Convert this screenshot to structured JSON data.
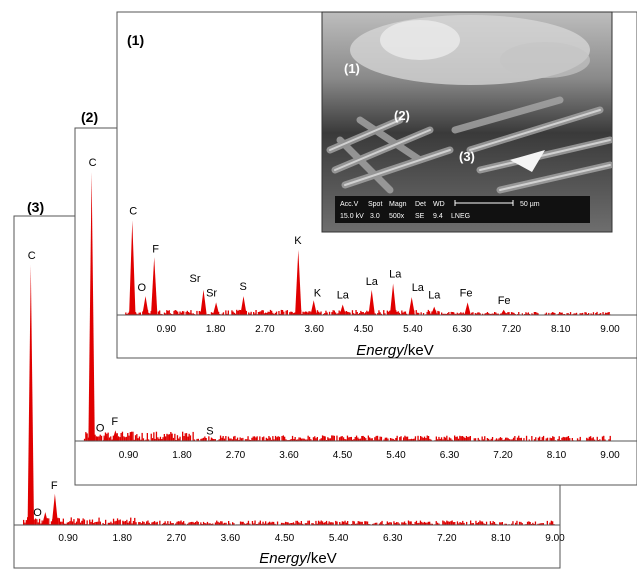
{
  "chart_data": [
    {
      "type": "bar",
      "panel": "(3)",
      "xlabel_italic": "Energy",
      "xlabel_unit": "/keV",
      "x_ticks": [
        "0.90",
        "1.80",
        "2.70",
        "3.60",
        "4.50",
        "5.40",
        "6.30",
        "7.20",
        "8.10",
        "9.00"
      ],
      "xlim": [
        0,
        9.0
      ],
      "noise_level": 0.025,
      "peaks": [
        {
          "element": "C",
          "energy": 0.28,
          "intensity": 1.0
        },
        {
          "element": "O",
          "energy": 0.52,
          "intensity": 0.05
        },
        {
          "element": "F",
          "energy": 0.68,
          "intensity": 0.12
        }
      ]
    },
    {
      "type": "bar",
      "panel": "(2)",
      "xlabel_italic": "",
      "xlabel_unit": "",
      "x_ticks": [
        "0.90",
        "1.80",
        "2.70",
        "3.60",
        "4.50",
        "5.40",
        "6.30",
        "7.20",
        "8.10",
        "9.00"
      ],
      "xlim": [
        0,
        9.0
      ],
      "noise_level": 0.03,
      "peaks": [
        {
          "element": "C",
          "energy": 0.28,
          "intensity": 1.0
        },
        {
          "element": "O",
          "energy": 0.52,
          "intensity": 0.02
        },
        {
          "element": "F",
          "energy": 0.68,
          "intensity": 0.04
        },
        {
          "element": "S",
          "energy": 2.31,
          "intensity": 0.01
        }
      ]
    },
    {
      "type": "bar",
      "panel": "(1)",
      "xlabel_italic": "Energy",
      "xlabel_unit": "/keV",
      "x_ticks": [
        "0.90",
        "1.80",
        "2.70",
        "3.60",
        "4.50",
        "5.40",
        "6.30",
        "7.20",
        "8.10",
        "9.00"
      ],
      "xlim": [
        0,
        9.0
      ],
      "noise_level": 0.05,
      "peaks": [
        {
          "element": "C",
          "energy": 0.28,
          "intensity": 0.9
        },
        {
          "element": "O",
          "energy": 0.52,
          "intensity": 0.18
        },
        {
          "element": "F",
          "energy": 0.68,
          "intensity": 0.55
        },
        {
          "element": "Sr",
          "energy": 1.58,
          "intensity": 0.24
        },
        {
          "element": "Sr",
          "energy": 1.81,
          "intensity": 0.12
        },
        {
          "element": "S",
          "energy": 2.31,
          "intensity": 0.18
        },
        {
          "element": "K",
          "energy": 3.31,
          "intensity": 0.62
        },
        {
          "element": "K",
          "energy": 3.59,
          "intensity": 0.14
        },
        {
          "element": "La",
          "energy": 4.12,
          "intensity": 0.1
        },
        {
          "element": "La",
          "energy": 4.65,
          "intensity": 0.24
        },
        {
          "element": "La",
          "energy": 5.04,
          "intensity": 0.3
        },
        {
          "element": "La",
          "energy": 5.38,
          "intensity": 0.17
        },
        {
          "element": "La",
          "energy": 5.79,
          "intensity": 0.08
        },
        {
          "element": "Fe",
          "energy": 6.4,
          "intensity": 0.12
        },
        {
          "element": "Fe",
          "energy": 7.06,
          "intensity": 0.05
        }
      ]
    }
  ],
  "inset": {
    "labels": [
      "(1)",
      "(2)",
      "(3)"
    ],
    "info_headers": [
      "Acc.V",
      "Spot",
      "Magn",
      "Det",
      "WD"
    ],
    "info_values": [
      "15.0 kV",
      "3.0",
      "500x",
      "SE",
      "9.4",
      "LNEG"
    ],
    "scale_bar": "50 µm"
  },
  "colors": {
    "spectrum": "#e00000",
    "frame": "#555555"
  }
}
